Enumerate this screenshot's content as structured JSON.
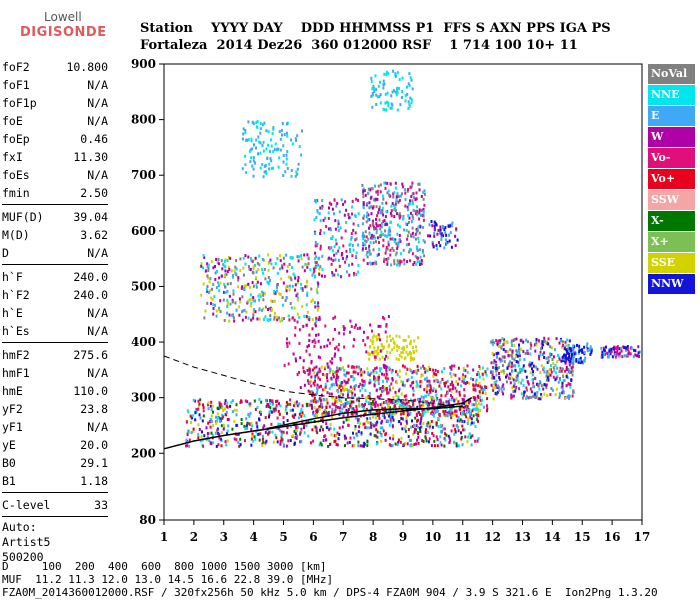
{
  "logo": {
    "line1": "Lowell",
    "line2": "DIGISONDE"
  },
  "header": {
    "line1": "Station    YYYY DAY    DDD HHMMSS P1  FFS S AXN PPS IGA PS",
    "line2": "Fortaleza  2014 Dez26  360 012000 RSF    1 714 100 10+ 11"
  },
  "params": {
    "group1": [
      {
        "k": "foF2",
        "v": "10.800"
      },
      {
        "k": "foF1",
        "v": "N/A"
      },
      {
        "k": "foF1p",
        "v": "N/A"
      },
      {
        "k": "foE",
        "v": "N/A"
      },
      {
        "k": "foEp",
        "v": "0.46"
      },
      {
        "k": "fxI",
        "v": "11.30"
      },
      {
        "k": "foEs",
        "v": "N/A"
      },
      {
        "k": "fmin",
        "v": "2.50"
      }
    ],
    "group2": [
      {
        "k": "MUF(D)",
        "v": "39.04"
      },
      {
        "k": "M(D)",
        "v": "3.62"
      },
      {
        "k": "D",
        "v": "N/A"
      }
    ],
    "group3": [
      {
        "k": "h`F",
        "v": "240.0"
      },
      {
        "k": "h`F2",
        "v": "240.0"
      },
      {
        "k": "h`E",
        "v": "N/A"
      },
      {
        "k": "h`Es",
        "v": "N/A"
      }
    ],
    "group4": [
      {
        "k": "hmF2",
        "v": "275.6"
      },
      {
        "k": "hmF1",
        "v": "N/A"
      },
      {
        "k": "hmE",
        "v": "110.0"
      },
      {
        "k": "yF2",
        "v": "23.8"
      },
      {
        "k": "yF1",
        "v": "N/A"
      },
      {
        "k": "yE",
        "v": "20.0"
      },
      {
        "k": "B0",
        "v": "29.1"
      },
      {
        "k": "B1",
        "v": "1.18"
      }
    ],
    "clevel": {
      "k": "C-level",
      "v": "33"
    },
    "auto": [
      "Auto:",
      "Artist5",
      "500200"
    ]
  },
  "legend": [
    {
      "label": "NoVal",
      "color": "#808080"
    },
    {
      "label": "NNE",
      "color": "#00e5ee"
    },
    {
      "label": "E",
      "color": "#3fa9f5"
    },
    {
      "label": "W",
      "color": "#b000a8"
    },
    {
      "label": "Vo-",
      "color": "#e0107a"
    },
    {
      "label": "Vo+",
      "color": "#e8001c"
    },
    {
      "label": "SSW",
      "color": "#f4a6a6"
    },
    {
      "label": "X-",
      "color": "#007800"
    },
    {
      "label": "X+",
      "color": "#7cbf55"
    },
    {
      "label": "SSE",
      "color": "#d2d200"
    },
    {
      "label": "NNW",
      "color": "#1414d8"
    }
  ],
  "bottom": {
    "line1": "D     100  200  400  600  800 1000 1500 3000 [km]",
    "line2": "MUF  11.2 11.3 12.0 13.0 14.5 16.6 22.8 39.0 [MHz]",
    "line3": "FZA0M_2014360012000.RSF / 320fx256h 50 kHz 5.0 km / DPS-4 FZA0M 904 / 3.9 S 321.6 E  Ion2Png 1.3.20"
  },
  "chart_data": {
    "type": "scatter",
    "xlim": [
      1,
      17
    ],
    "ylim": [
      80,
      900
    ],
    "xticks": [
      1,
      2,
      3,
      4,
      5,
      6,
      7,
      8,
      9,
      10,
      11,
      12,
      13,
      14,
      15,
      16,
      17
    ],
    "yticks": [
      80,
      200,
      300,
      400,
      500,
      600,
      700,
      800,
      900
    ],
    "clusters": [
      {
        "x0": 1.7,
        "x1": 11.5,
        "y0": 215,
        "y1": 300,
        "n": 900,
        "colors": [
          "#e8001c",
          "#e0107a",
          "#d2d200",
          "#3fa9f5",
          "#b000a8",
          "#007800",
          "#00e5ee",
          "#1414d8"
        ]
      },
      {
        "x0": 5.8,
        "x1": 11.8,
        "y0": 270,
        "y1": 360,
        "n": 700,
        "colors": [
          "#b000a8",
          "#e0107a",
          "#3fa9f5",
          "#d2d200",
          "#00e5ee",
          "#e8001c"
        ]
      },
      {
        "x0": 7.8,
        "x1": 9.5,
        "y0": 370,
        "y1": 415,
        "n": 90,
        "colors": [
          "#d2d200"
        ]
      },
      {
        "x0": 11.9,
        "x1": 14.7,
        "y0": 300,
        "y1": 410,
        "n": 450,
        "colors": [
          "#b000a8",
          "#3fa9f5",
          "#e0107a",
          "#00e5ee",
          "#d2d200",
          "#1414d8",
          "#808080"
        ]
      },
      {
        "x0": 14.3,
        "x1": 15.3,
        "y0": 365,
        "y1": 400,
        "n": 80,
        "colors": [
          "#1414d8",
          "#3fa9f5"
        ]
      },
      {
        "x0": 15.6,
        "x1": 16.9,
        "y0": 375,
        "y1": 395,
        "n": 90,
        "colors": [
          "#e0107a",
          "#3fa9f5",
          "#1414d8",
          "#b000a8"
        ]
      },
      {
        "x0": 2.2,
        "x1": 6.2,
        "y0": 440,
        "y1": 560,
        "n": 380,
        "colors": [
          "#3fa9f5",
          "#00e5ee",
          "#d2d200",
          "#b000a8",
          "#808080"
        ]
      },
      {
        "x0": 6.0,
        "x1": 7.5,
        "y0": 520,
        "y1": 660,
        "n": 150,
        "colors": [
          "#3fa9f5",
          "#00e5ee",
          "#e0107a",
          "#b000a8"
        ]
      },
      {
        "x0": 7.6,
        "x1": 9.7,
        "y0": 540,
        "y1": 690,
        "n": 380,
        "colors": [
          "#3fa9f5",
          "#00e5ee",
          "#e0107a",
          "#b000a8",
          "#808080"
        ]
      },
      {
        "x0": 9.8,
        "x1": 10.8,
        "y0": 570,
        "y1": 620,
        "n": 60,
        "colors": [
          "#b000a8",
          "#3fa9f5",
          "#1414d8"
        ]
      },
      {
        "x0": 3.6,
        "x1": 5.6,
        "y0": 700,
        "y1": 800,
        "n": 120,
        "colors": [
          "#3fa9f5",
          "#00e5ee"
        ]
      },
      {
        "x0": 7.9,
        "x1": 9.3,
        "y0": 820,
        "y1": 890,
        "n": 80,
        "colors": [
          "#3fa9f5",
          "#00e5ee"
        ]
      },
      {
        "x0": 5.0,
        "x1": 8.5,
        "y0": 320,
        "y1": 450,
        "n": 160,
        "colors": [
          "#e0107a",
          "#b000a8"
        ]
      }
    ],
    "traces": [
      {
        "name": "",
        "style": "solid",
        "points": [
          [
            1,
            208
          ],
          [
            2,
            222
          ],
          [
            3,
            232
          ],
          [
            4,
            240
          ],
          [
            5,
            248
          ],
          [
            6,
            256
          ],
          [
            7,
            264
          ],
          [
            8,
            270
          ],
          [
            9,
            276
          ],
          [
            10,
            282
          ],
          [
            11,
            290
          ],
          [
            11.3,
            300
          ]
        ]
      },
      {
        "name": "",
        "style": "solid",
        "points": [
          [
            4.5,
            245
          ],
          [
            6,
            262
          ],
          [
            7,
            272
          ],
          [
            8,
            278
          ],
          [
            9,
            280
          ],
          [
            10,
            280
          ],
          [
            11,
            285
          ]
        ]
      },
      {
        "name": "",
        "style": "dashed",
        "points": [
          [
            1,
            375
          ],
          [
            2,
            355
          ],
          [
            3,
            340
          ],
          [
            4,
            325
          ],
          [
            5,
            312
          ],
          [
            6,
            305
          ],
          [
            7,
            300
          ],
          [
            8,
            298
          ],
          [
            9,
            296
          ],
          [
            10,
            290
          ],
          [
            11,
            283
          ],
          [
            11.2,
            280
          ]
        ]
      }
    ]
  }
}
